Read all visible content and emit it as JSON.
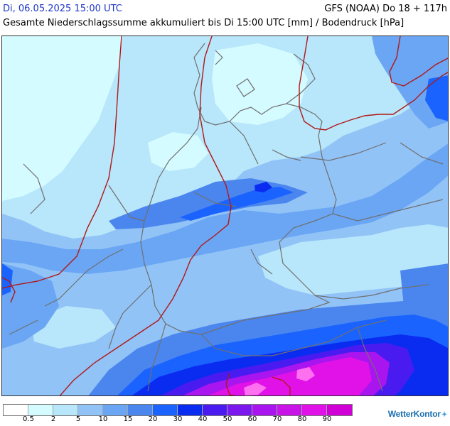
{
  "header": {
    "datetime": "Di, 06.05.2025 15:00 UTC",
    "model_run": "GFS (NOAA) Do 18 + 117h",
    "title": "Gesamte Niederschlagssumme akkumuliert bis Di 15:00 UTC [mm] / Bodendruck [hPa]"
  },
  "colors": {
    "background_mid": "#8fc0f4",
    "isobar": "#b01818",
    "border": "#6f6f6f"
  },
  "legend": {
    "swatches": [
      "#ffffff",
      "#d4fbff",
      "#b8e6fa",
      "#91c3f7",
      "#6aa6f3",
      "#4b86ef",
      "#1a63ff",
      "#0a2cf0",
      "#4a1bf0",
      "#7a18ee",
      "#a915ee",
      "#c814e6",
      "#e012e8",
      "#d100d6"
    ],
    "ticks": [
      "0.5",
      "2",
      "5",
      "10",
      "15",
      "20",
      "30",
      "40",
      "50",
      "60",
      "70",
      "80",
      "90"
    ]
  },
  "logo": {
    "text": "WetterKontor",
    "mark_icon": "wetterkontor-mark-icon"
  }
}
